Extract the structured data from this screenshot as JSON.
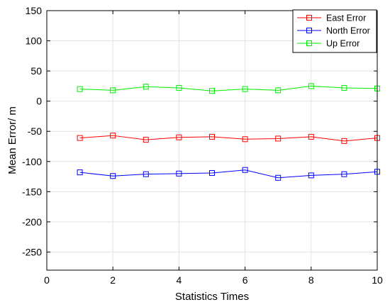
{
  "chart_data": {
    "type": "line",
    "xlabel": "Statistics Times",
    "ylabel": "Mean Error/ m",
    "xlim": [
      0,
      10
    ],
    "ylim": [
      -280,
      150
    ],
    "xticks": [
      0,
      2,
      4,
      6,
      8,
      10
    ],
    "yticks": [
      -250,
      -200,
      -150,
      -100,
      -50,
      0,
      50,
      100,
      150
    ],
    "grid": true,
    "legend_position": "top-right",
    "marker": "square",
    "x": [
      1,
      2,
      3,
      4,
      5,
      6,
      7,
      8,
      9,
      10
    ],
    "series": [
      {
        "name": "East Error",
        "color": "#ff0000",
        "values": [
          -61,
          -57,
          -64,
          -60,
          -59,
          -63,
          -62,
          -59,
          -66,
          -61
        ]
      },
      {
        "name": "North Error",
        "color": "#0000ff",
        "values": [
          -118,
          -124,
          -121,
          -120,
          -119,
          -114,
          -127,
          -123,
          -121,
          -117
        ]
      },
      {
        "name": "Up Error",
        "color": "#00ee00",
        "values": [
          20,
          18,
          24,
          22,
          17,
          20,
          18,
          25,
          22,
          21
        ]
      }
    ]
  }
}
